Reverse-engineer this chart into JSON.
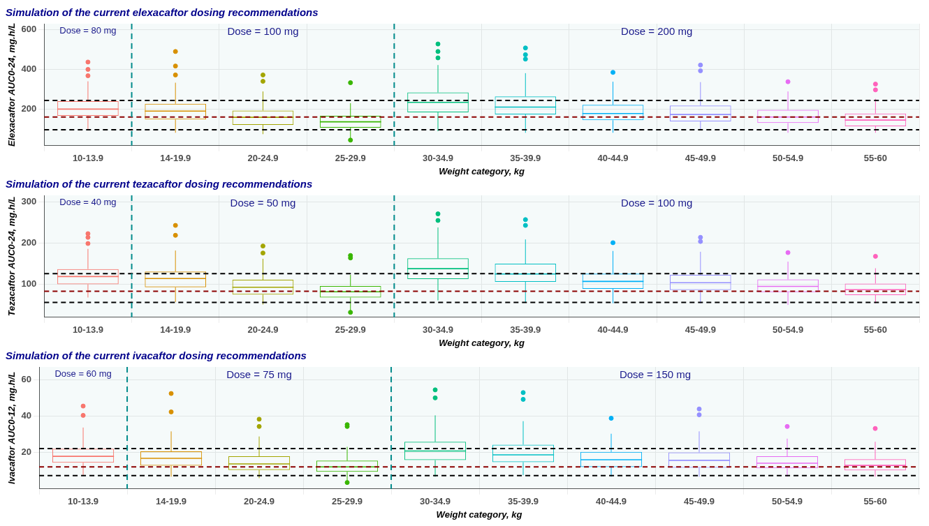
{
  "chart_data": [
    {
      "type": "box",
      "title": "Simulation of the current elexacaftor dosing recommendations",
      "xlabel": "Weight category, kg",
      "ylabel": "Elexacaftor AUC0-24, mg.h/L",
      "categories": [
        "10-13.9",
        "14-19.9",
        "20-24.9",
        "25-29.9",
        "30-34.9",
        "35-39.9",
        "40-44.9",
        "45-49.9",
        "50-54.9",
        "55-60"
      ],
      "colors": [
        "#f8766d",
        "#d89000",
        "#a3a500",
        "#39b600",
        "#00bf7d",
        "#00bfc4",
        "#00b0f6",
        "#9590ff",
        "#e76bf3",
        "#ff62bc"
      ],
      "boxes": [
        {
          "low": 96,
          "q1": 166,
          "median": 200,
          "q3": 240,
          "high": 340
        },
        {
          "low": 81,
          "q1": 148,
          "median": 190,
          "q3": 227,
          "high": 333
        },
        {
          "low": 74,
          "q1": 121,
          "median": 159,
          "q3": 193,
          "high": 289
        },
        {
          "low": 44,
          "q1": 107,
          "median": 136,
          "q3": 166,
          "high": 230
        },
        {
          "low": 89,
          "q1": 184,
          "median": 234,
          "q3": 284,
          "high": 422
        },
        {
          "low": 81,
          "q1": 173,
          "median": 210,
          "q3": 264,
          "high": 381
        },
        {
          "low": 81,
          "q1": 144,
          "median": 178,
          "q3": 222,
          "high": 338
        },
        {
          "low": 96,
          "q1": 138,
          "median": 173,
          "q3": 218,
          "high": 336
        },
        {
          "low": 81,
          "q1": 130,
          "median": 160,
          "q3": 196,
          "high": 289
        },
        {
          "low": 81,
          "q1": 114,
          "median": 145,
          "q3": 178,
          "high": 252
        }
      ],
      "series": [
        {
          "type": "scatter",
          "x": [
            "10-13.9",
            "10-13.9",
            "10-13.9",
            "14-19.9",
            "14-19.9",
            "14-19.9",
            "20-24.9",
            "20-24.9",
            "25-29.9",
            "25-29.9",
            "30-34.9",
            "30-34.9",
            "30-34.9",
            "35-39.9",
            "35-39.9",
            "35-39.9",
            "40-44.9",
            "45-49.9",
            "45-49.9",
            "50-54.9",
            "55-60",
            "55-60"
          ],
          "values": [
            437,
            400,
            368,
            490,
            417,
            372,
            372,
            340,
            333,
            44,
            528,
            490,
            458,
            508,
            474,
            452,
            385,
            422,
            393,
            338,
            326,
            297
          ],
          "colors": [
            "#f8766d",
            "#f8766d",
            "#f8766d",
            "#d89000",
            "#d89000",
            "#d89000",
            "#a3a500",
            "#a3a500",
            "#39b600",
            "#39b600",
            "#00bf7d",
            "#00bf7d",
            "#00bf7d",
            "#00bfc4",
            "#00bfc4",
            "#00bfc4",
            "#00b0f6",
            "#9590ff",
            "#9590ff",
            "#e76bf3",
            "#ff62bc",
            "#ff62bc"
          ]
        }
      ],
      "ylim": [
        16,
        630
      ],
      "yticks": [
        200,
        400,
        600
      ],
      "grid": true,
      "marker": "circle",
      "ref_lines": [
        {
          "axis": "y",
          "value": 244,
          "color": "#000000",
          "line_style": "dashed"
        },
        {
          "axis": "y",
          "value": 160,
          "color": "#8b0000",
          "line_style": "dashed"
        },
        {
          "axis": "y",
          "value": 96,
          "color": "#000000",
          "line_style": "dashed"
        }
      ],
      "bands": [
        {
          "axis": "x",
          "from": "10-13.9",
          "to": "10-13.9",
          "label": "Dose = 80 mg",
          "color": "#008b8b"
        },
        {
          "axis": "x",
          "from": "14-19.9",
          "to": "25-29.9",
          "label": "Dose = 100 mg",
          "color": "#008b8b"
        },
        {
          "axis": "x",
          "from": "30-34.9",
          "to": "55-60",
          "label": "Dose = 200 mg",
          "color": "#008b8b"
        }
      ]
    },
    {
      "type": "box",
      "title": "Simulation of the current tezacaftor dosing recommendations",
      "xlabel": "Weight category, kg",
      "ylabel": "Tezacaftor AUC0-24, mg.h/L",
      "categories": [
        "10-13.9",
        "14-19.9",
        "20-24.9",
        "25-29.9",
        "30-34.9",
        "35-39.9",
        "40-44.9",
        "45-49.9",
        "50-54.9",
        "55-60"
      ],
      "colors": [
        "#f8766d",
        "#d89000",
        "#a3a500",
        "#39b600",
        "#00bf7d",
        "#00bfc4",
        "#00b0f6",
        "#9590ff",
        "#e76bf3",
        "#ff62bc"
      ],
      "boxes": [
        {
          "low": 68,
          "q1": 100,
          "median": 119,
          "q3": 137,
          "high": 186
        },
        {
          "low": 57,
          "q1": 93,
          "median": 114,
          "q3": 131,
          "high": 182
        },
        {
          "low": 51,
          "q1": 75,
          "median": 93,
          "q3": 111,
          "high": 162
        },
        {
          "low": 34,
          "q1": 68,
          "median": 82,
          "q3": 96,
          "high": 123
        },
        {
          "low": 61,
          "q1": 113,
          "median": 138,
          "q3": 163,
          "high": 238
        },
        {
          "low": 57,
          "q1": 106,
          "median": 125,
          "q3": 150,
          "high": 209
        },
        {
          "low": 54,
          "q1": 89,
          "median": 107,
          "q3": 126,
          "high": 181
        },
        {
          "low": 54,
          "q1": 86,
          "median": 104,
          "q3": 123,
          "high": 179
        },
        {
          "low": 50,
          "q1": 81,
          "median": 95,
          "q3": 112,
          "high": 155
        },
        {
          "low": 54,
          "q1": 74,
          "median": 87,
          "q3": 102,
          "high": 139
        }
      ],
      "series": [
        {
          "type": "scatter",
          "x": [
            "10-13.9",
            "10-13.9",
            "10-13.9",
            "14-19.9",
            "14-19.9",
            "20-24.9",
            "20-24.9",
            "25-29.9",
            "25-29.9",
            "25-29.9",
            "30-34.9",
            "30-34.9",
            "35-39.9",
            "35-39.9",
            "40-44.9",
            "45-49.9",
            "45-49.9",
            "50-54.9",
            "55-60"
          ],
          "values": [
            223,
            214,
            199,
            243,
            219,
            193,
            176,
            170,
            164,
            32,
            271,
            255,
            257,
            243,
            201,
            214,
            204,
            177,
            168
          ],
          "colors": [
            "#f8766d",
            "#f8766d",
            "#f8766d",
            "#d89000",
            "#d89000",
            "#a3a500",
            "#a3a500",
            "#39b600",
            "#39b600",
            "#39b600",
            "#00bf7d",
            "#00bf7d",
            "#00bfc4",
            "#00bfc4",
            "#00b0f6",
            "#9590ff",
            "#9590ff",
            "#e76bf3",
            "#ff62bc"
          ]
        }
      ],
      "ylim": [
        20,
        316
      ],
      "yticks": [
        100,
        200,
        300
      ],
      "grid": true,
      "marker": "circle",
      "ref_lines": [
        {
          "axis": "y",
          "value": 126,
          "color": "#000000",
          "line_style": "dashed"
        },
        {
          "axis": "y",
          "value": 83,
          "color": "#8b0000",
          "line_style": "dashed"
        },
        {
          "axis": "y",
          "value": 56,
          "color": "#000000",
          "line_style": "dashed"
        }
      ],
      "bands": [
        {
          "axis": "x",
          "from": "10-13.9",
          "to": "10-13.9",
          "label": "Dose = 40 mg",
          "color": "#008b8b"
        },
        {
          "axis": "x",
          "from": "14-19.9",
          "to": "25-29.9",
          "label": "Dose = 50 mg",
          "color": "#008b8b"
        },
        {
          "axis": "x",
          "from": "30-34.9",
          "to": "55-60",
          "label": "Dose = 100 mg",
          "color": "#008b8b"
        }
      ]
    },
    {
      "type": "box",
      "title": "Simulation of the current ivacaftor dosing recommendations",
      "xlabel": "Weight category, kg",
      "ylabel": "Ivacaftor AUC0-12, mg.h/L",
      "categories": [
        "10-13.9",
        "14-19.9",
        "20-24.9",
        "25-29.9",
        "30-34.9",
        "35-39.9",
        "40-44.9",
        "45-49.9",
        "50-54.9",
        "55-60"
      ],
      "colors": [
        "#f8766d",
        "#d89000",
        "#a3a500",
        "#39b600",
        "#00bf7d",
        "#00bfc4",
        "#00b0f6",
        "#9590ff",
        "#e76bf3",
        "#ff62bc"
      ],
      "boxes": [
        {
          "low": 7.5,
          "q1": 14.4,
          "median": 17.9,
          "q3": 22.1,
          "high": 33.7
        },
        {
          "low": 6.7,
          "q1": 12.8,
          "median": 16.8,
          "q3": 20.6,
          "high": 31.6
        },
        {
          "low": 5.9,
          "q1": 10.4,
          "median": 13.7,
          "q3": 17.9,
          "high": 28.8
        },
        {
          "low": 3.5,
          "q1": 9.4,
          "median": 12.1,
          "q3": 15.5,
          "high": 23.1
        },
        {
          "low": 6.7,
          "q1": 15.8,
          "median": 20.8,
          "q3": 25.9,
          "high": 40.4
        },
        {
          "low": 7.5,
          "q1": 14.7,
          "median": 18.7,
          "q3": 24.3,
          "high": 37.2
        },
        {
          "low": 6.7,
          "q1": 12.0,
          "median": 16.0,
          "q3": 20.3,
          "high": 30.3
        },
        {
          "low": 6.7,
          "q1": 11.6,
          "median": 15.7,
          "q3": 20.0,
          "high": 31.6
        },
        {
          "low": 6.7,
          "q1": 11.3,
          "median": 14.1,
          "q3": 17.9,
          "high": 27.6
        },
        {
          "low": 6.7,
          "q1": 10.2,
          "median": 12.9,
          "q3": 16.3,
          "high": 25.9
        }
      ],
      "series": [
        {
          "type": "scatter",
          "x": [
            "10-13.9",
            "10-13.9",
            "14-19.9",
            "14-19.9",
            "20-24.9",
            "20-24.9",
            "25-29.9",
            "25-29.9",
            "25-29.9",
            "30-34.9",
            "30-34.9",
            "35-39.9",
            "35-39.9",
            "40-44.9",
            "45-49.9",
            "45-49.9",
            "50-54.9",
            "55-60"
          ],
          "values": [
            45.5,
            40.4,
            52.4,
            42.3,
            38.3,
            34.3,
            35.3,
            34.3,
            3.5,
            54.4,
            50.0,
            52.9,
            49.2,
            38.8,
            43.9,
            40.7,
            34.3,
            33.2
          ],
          "colors": [
            "#f8766d",
            "#f8766d",
            "#d89000",
            "#d89000",
            "#a3a500",
            "#a3a500",
            "#39b600",
            "#39b600",
            "#39b600",
            "#00bf7d",
            "#00bf7d",
            "#00bfc4",
            "#00bfc4",
            "#00b0f6",
            "#9590ff",
            "#9590ff",
            "#e76bf3",
            "#ff62bc"
          ]
        }
      ],
      "ylim": [
        0,
        67
      ],
      "yticks": [
        20,
        40,
        60
      ],
      "grid": true,
      "marker": "circle",
      "ref_lines": [
        {
          "axis": "y",
          "value": 22.2,
          "color": "#000000",
          "line_style": "dashed"
        },
        {
          "axis": "y",
          "value": 12.1,
          "color": "#8b0000",
          "line_style": "dashed"
        },
        {
          "axis": "y",
          "value": 7.3,
          "color": "#000000",
          "line_style": "dashed"
        }
      ],
      "bands": [
        {
          "axis": "x",
          "from": "10-13.9",
          "to": "10-13.9",
          "label": "Dose = 60 mg",
          "color": "#008b8b"
        },
        {
          "axis": "x",
          "from": "14-19.9",
          "to": "25-29.9",
          "label": "Dose = 75 mg",
          "color": "#008b8b"
        },
        {
          "axis": "x",
          "from": "30-34.9",
          "to": "55-60",
          "label": "Dose = 150 mg",
          "color": "#008b8b"
        }
      ]
    }
  ]
}
